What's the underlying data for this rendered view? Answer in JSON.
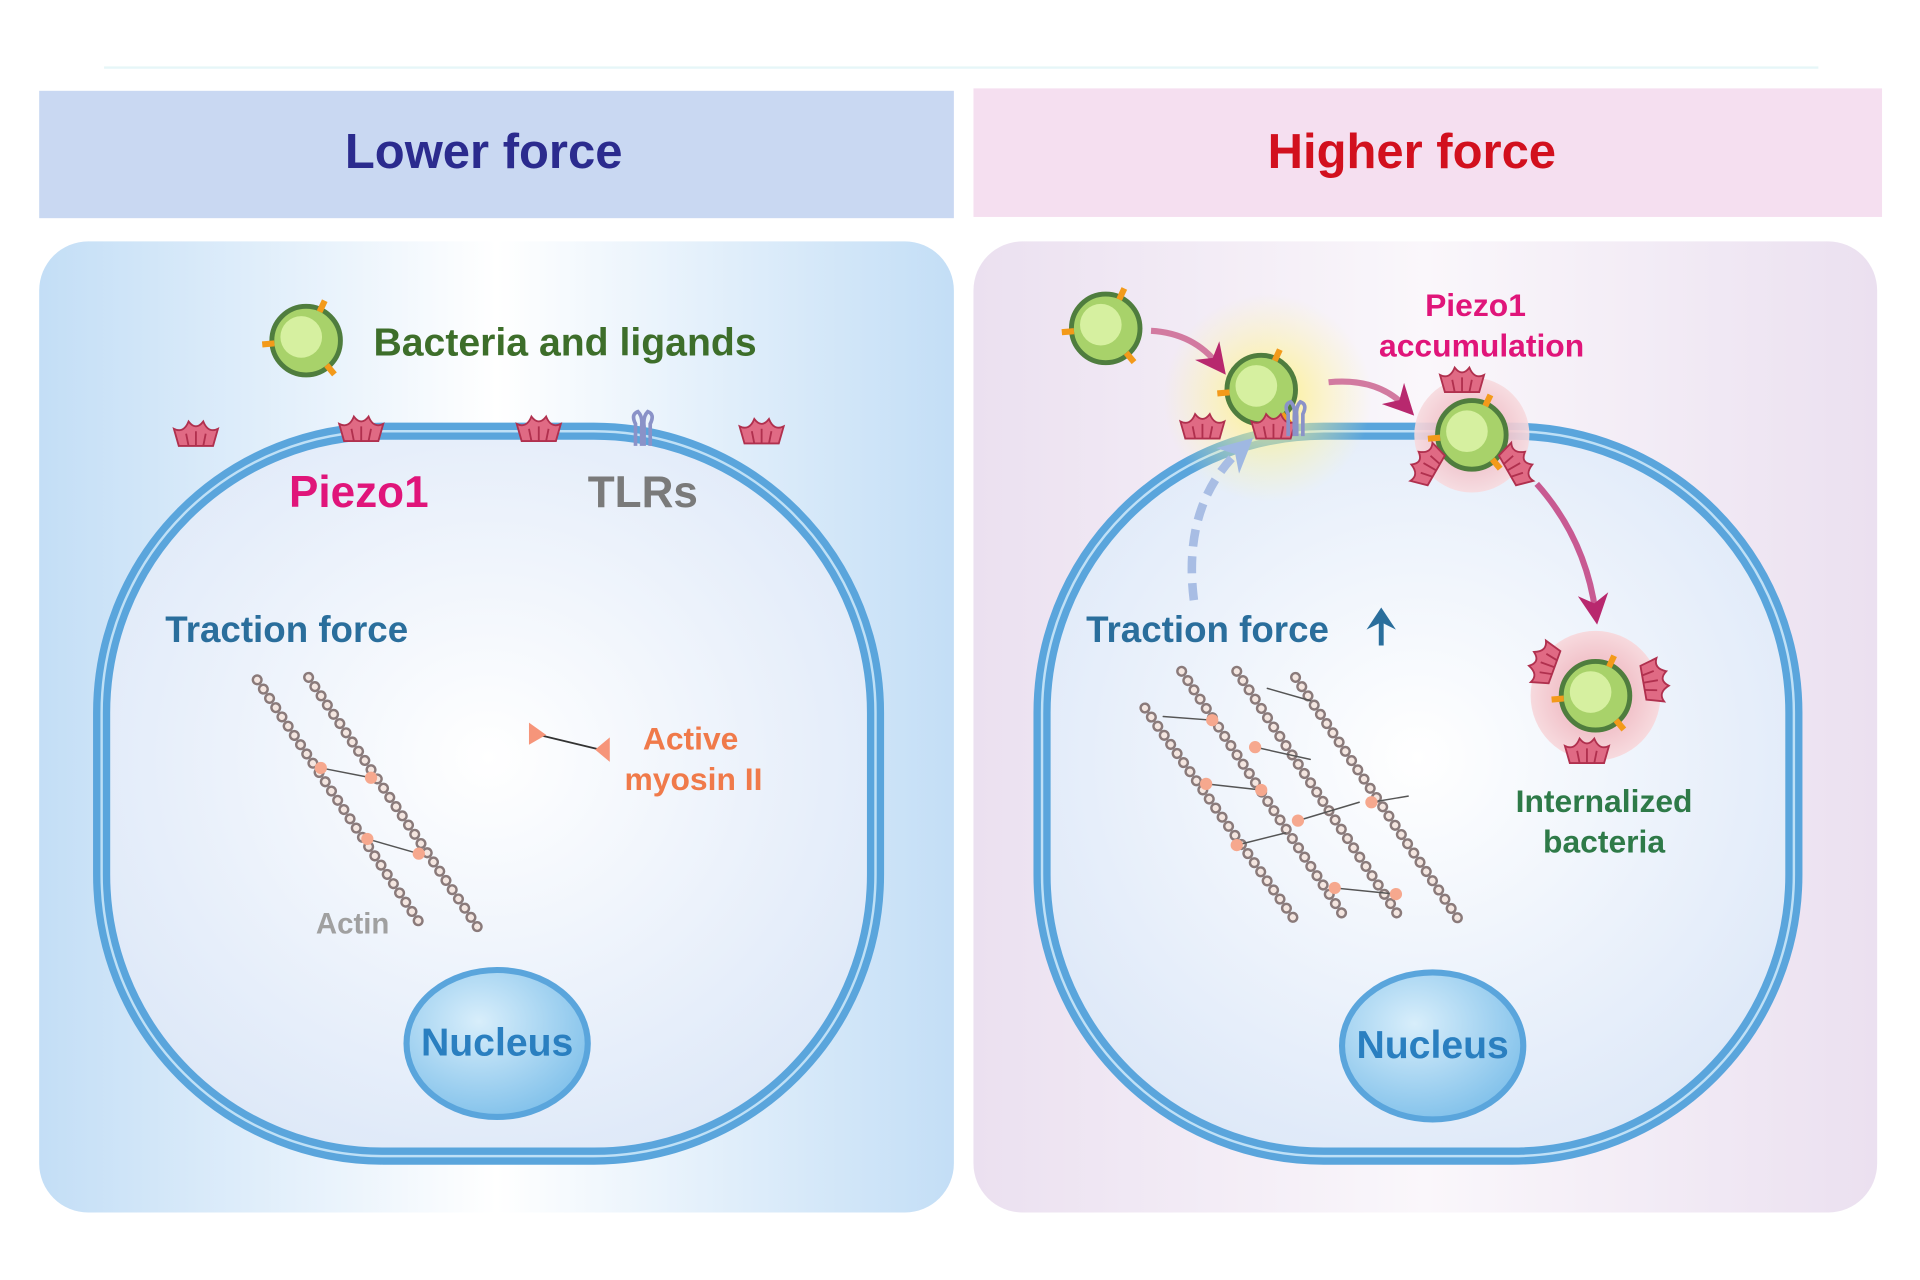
{
  "left_panel": {
    "title": "Lower force",
    "bacteria_label": "Bacteria and ligands",
    "piezo_label": "Piezo1",
    "tlr_label": "TLRs",
    "traction_label": "Traction force",
    "myosin_label_line1": "Active",
    "myosin_label_line2": "myosin II",
    "actin_label": "Actin",
    "nucleus_label": "Nucleus"
  },
  "right_panel": {
    "title": "Higher force",
    "accumulation_line1": "Piezo1",
    "accumulation_line2": "accumulation",
    "traction_label": "Traction force",
    "traction_indicator": "increase-arrow-icon",
    "internalized_line1": "Internalized",
    "internalized_line2": "bacteria",
    "nucleus_label": "Nucleus"
  },
  "colors": {
    "lower_title": "#2b2b8e",
    "higher_title": "#d2101e",
    "piezo": "#e0157a",
    "membrane": "#5aa5dc",
    "traction": "#2a6e9c",
    "bacteria_text": "#3d6e2a",
    "internalized_text": "#2e7a48",
    "myosin": "#f07a4a"
  }
}
